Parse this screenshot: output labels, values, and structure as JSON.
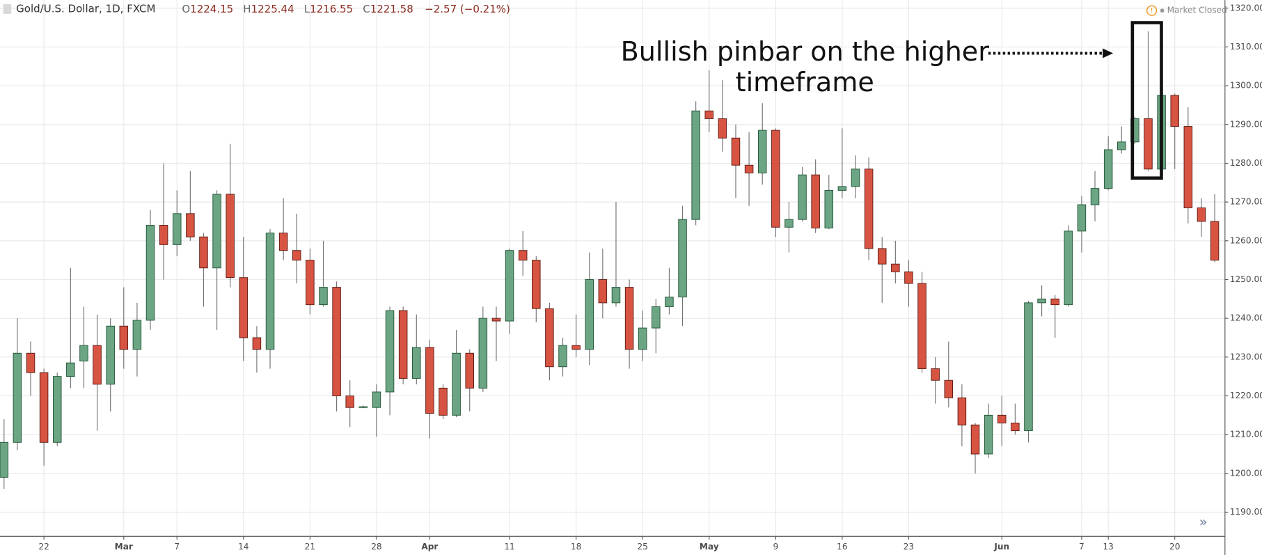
{
  "header": {
    "symbol": "Gold/U.S. Dollar, 1D, FXCM",
    "ohlc": [
      {
        "label": "O",
        "value": "1224.15"
      },
      {
        "label": "H",
        "value": "1225.44"
      },
      {
        "label": "L",
        "value": "1216.55"
      },
      {
        "label": "C",
        "value": "1221.58"
      }
    ],
    "change": "−2.57 (−0.21%)",
    "status": "Market Closed"
  },
  "chart_data": {
    "type": "candlestick",
    "annotation": [
      "Bullish pinbar on the higher",
      "timeframe"
    ],
    "up_color": "#6ba583",
    "down_color": "#d75442",
    "up_border": "#225437",
    "down_border": "#5b1a13",
    "wick_color": "#737375",
    "grid": true,
    "ylim": [
      1183.76,
      1322.08
    ],
    "yticks": [
      {
        "value": 1190,
        "label": "1190.00"
      },
      {
        "value": 1200,
        "label": "1200.00"
      },
      {
        "value": 1210,
        "label": "1210.00"
      },
      {
        "value": 1220,
        "label": "1220.00"
      },
      {
        "value": 1230,
        "label": "1230.00"
      },
      {
        "value": 1240,
        "label": "1240.00"
      },
      {
        "value": 1250,
        "label": "1250.00"
      },
      {
        "value": 1260,
        "label": "1260.00"
      },
      {
        "value": 1270,
        "label": "1270.00"
      },
      {
        "value": 1280,
        "label": "1280.00"
      },
      {
        "value": 1290,
        "label": "1290.00"
      },
      {
        "value": 1300,
        "label": "1300.00"
      },
      {
        "value": 1310,
        "label": "1310.00"
      },
      {
        "value": 1320,
        "label": "1320.00"
      }
    ],
    "categories": [
      null,
      null,
      null,
      "22",
      null,
      null,
      null,
      null,
      null,
      "Mar",
      null,
      null,
      null,
      "7",
      null,
      null,
      null,
      null,
      "14",
      null,
      null,
      null,
      null,
      "21",
      null,
      null,
      null,
      null,
      "28",
      null,
      null,
      null,
      "Apr",
      null,
      null,
      null,
      null,
      null,
      "11",
      null,
      null,
      null,
      null,
      "18",
      null,
      null,
      null,
      null,
      "25",
      null,
      null,
      null,
      null,
      "May",
      null,
      null,
      null,
      null,
      "9",
      null,
      null,
      null,
      null,
      "16",
      null,
      null,
      null,
      null,
      "23",
      null,
      null,
      null,
      null,
      null,
      null,
      "Jun",
      null,
      null,
      null,
      null,
      null,
      "7",
      null,
      "13",
      null,
      null,
      null,
      null,
      "20",
      null,
      null,
      null
    ],
    "open": [
      1199,
      1208,
      1231,
      1226,
      1208,
      1225,
      1229,
      1233,
      1223,
      1238,
      1232,
      1239.5,
      1264,
      1259,
      1267,
      1261,
      1253,
      1272,
      1250.5,
      1235,
      1232,
      1262,
      1257.5,
      1255,
      1243.5,
      1248,
      1220,
      1217,
      1217,
      1221,
      1242,
      1224.5,
      1232.5,
      1222,
      1215,
      1231,
      1222,
      1240,
      1239.3,
      1257.5,
      1255,
      1242.5,
      1227.5,
      1233,
      1232,
      1250,
      1244,
      1248,
      1232,
      1237.5,
      1243,
      1245.5,
      1265.5,
      1293.5,
      1291.5,
      1286.5,
      1279.5,
      1277.5,
      1288.5,
      1263.5,
      1265.5,
      1277,
      1263.3,
      1273,
      1274,
      1278.5,
      1258,
      1254,
      1252,
      1249,
      1227,
      1224,
      1219.5,
      1212.5,
      1205,
      1215,
      1213,
      1211,
      1244,
      1245,
      1243.5,
      1262.5,
      1269.3,
      1273.5,
      1283.5,
      1285.5,
      1291.5,
      1278.5,
      1297.5,
      1289.5,
      1268.5,
      1265
    ],
    "high": [
      1214,
      1240,
      1234,
      1227,
      1226,
      1253,
      1243,
      1241,
      1240,
      1248,
      1244,
      1268,
      1280,
      1273,
      1278,
      1262,
      1273,
      1285,
      1261,
      1238,
      1263,
      1271,
      1267,
      1258,
      1260,
      1249.5,
      1224,
      1217.5,
      1223,
      1243,
      1243,
      1241,
      1234.5,
      1223,
      1237,
      1232,
      1243,
      1243,
      1258,
      1262.5,
      1256,
      1244,
      1235,
      1241,
      1257,
      1258,
      1270,
      1250,
      1242,
      1245,
      1253,
      1269,
      1296,
      1304,
      1301.5,
      1290,
      1288,
      1295.5,
      1289,
      1270,
      1279,
      1281,
      1277,
      1289,
      1282,
      1281.5,
      1261,
      1260,
      1255,
      1252,
      1230,
      1234,
      1223,
      1213,
      1218,
      1220,
      1218,
      1244.5,
      1248.5,
      1246,
      1264,
      1271.5,
      1278,
      1287,
      1289.5,
      1292,
      1314,
      1298,
      1298,
      1294.5,
      1271,
      1272
    ],
    "low": [
      1196,
      1206,
      1220,
      1202,
      1207,
      1222,
      1222,
      1211,
      1216,
      1227,
      1225,
      1237,
      1250,
      1256,
      1260,
      1243,
      1237,
      1248,
      1229,
      1226,
      1227,
      1255,
      1249,
      1241,
      1243,
      1216,
      1212,
      1216.8,
      1209.5,
      1215,
      1223,
      1223,
      1209,
      1214,
      1214.5,
      1216,
      1221,
      1229,
      1236,
      1251,
      1239,
      1224,
      1225,
      1230,
      1228,
      1240,
      1243,
      1227,
      1229,
      1231,
      1241,
      1238,
      1264,
      1288,
      1283,
      1271,
      1269,
      1274.5,
      1261,
      1257,
      1265,
      1262,
      1263,
      1271,
      1271,
      1255,
      1244,
      1249,
      1243,
      1226,
      1218,
      1217,
      1207,
      1200,
      1204,
      1207,
      1210,
      1208,
      1240.5,
      1235,
      1243,
      1257,
      1265,
      1273,
      1282.5,
      1285,
      1278,
      1278,
      1278.5,
      1264.5,
      1261,
      1254.5
    ],
    "close": [
      1208,
      1231,
      1226,
      1208,
      1225,
      1228.5,
      1233,
      1223,
      1238,
      1232,
      1239.5,
      1264,
      1259,
      1267,
      1261,
      1253,
      1272,
      1250.5,
      1235,
      1232,
      1262,
      1257.5,
      1255,
      1243.5,
      1248,
      1220,
      1217,
      1217.2,
      1221,
      1242,
      1224.5,
      1232.5,
      1215.5,
      1215,
      1231,
      1222,
      1240,
      1239.3,
      1257.5,
      1255,
      1242.5,
      1227.5,
      1233,
      1232,
      1250,
      1244,
      1248,
      1232,
      1237.5,
      1243,
      1245.5,
      1265.5,
      1293.5,
      1291.5,
      1286.5,
      1279.5,
      1277.5,
      1288.5,
      1263.5,
      1265.5,
      1277,
      1263.3,
      1273,
      1274,
      1278.5,
      1258,
      1254,
      1252,
      1249,
      1227,
      1224,
      1219.5,
      1212.5,
      1205,
      1215,
      1213,
      1211,
      1244,
      1245,
      1243.5,
      1262.5,
      1269.3,
      1273.5,
      1283.5,
      1285.5,
      1291.5,
      1278.5,
      1297.5,
      1289.5,
      1268.5,
      1265,
      1255
    ]
  }
}
